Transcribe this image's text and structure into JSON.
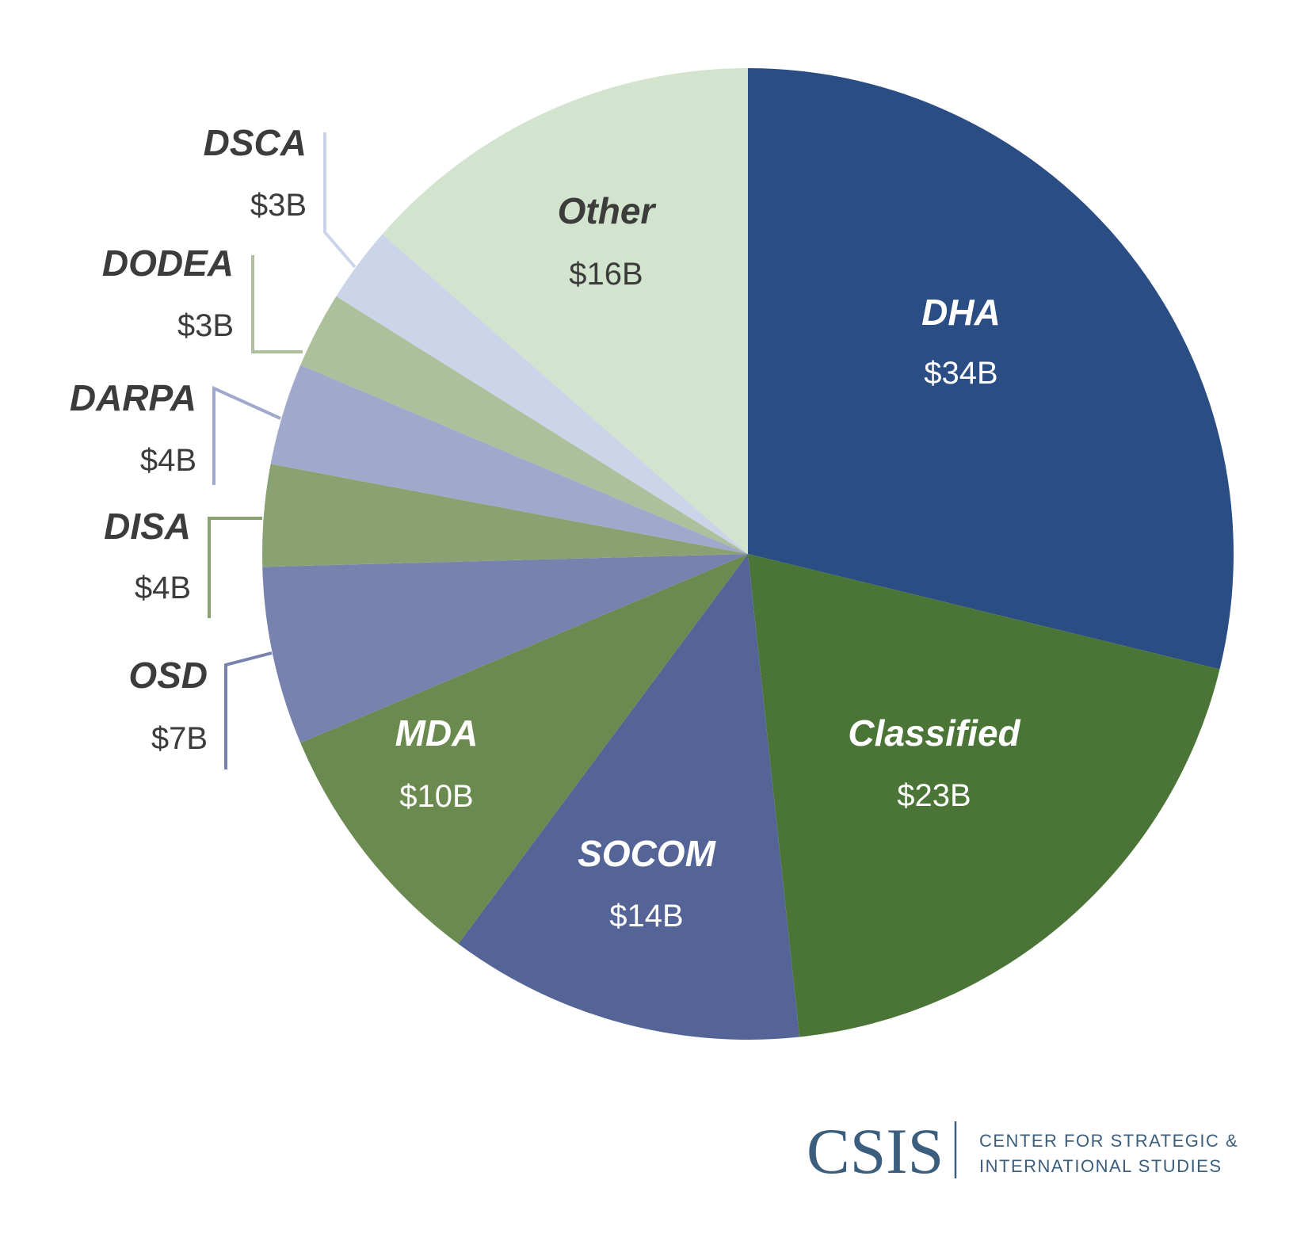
{
  "chart_data": {
    "type": "pie",
    "start": "12 o'clock, clockwise",
    "slices": [
      {
        "label": "DHA",
        "value": 34,
        "value_label": "$34B",
        "color": "#2a4d84",
        "placement": "inside"
      },
      {
        "label": "Classified",
        "value": 23,
        "value_label": "$23B",
        "color": "#4b7536",
        "placement": "inside"
      },
      {
        "label": "SOCOM",
        "value": 14,
        "value_label": "$14B",
        "color": "#546496",
        "placement": "inside"
      },
      {
        "label": "MDA",
        "value": 10,
        "value_label": "$10B",
        "color": "#6a8a50",
        "placement": "inside"
      },
      {
        "label": "OSD",
        "value": 7,
        "value_label": "$7B",
        "color": "#7882ae",
        "placement": "outside"
      },
      {
        "label": "DISA",
        "value": 4,
        "value_label": "$4B",
        "color": "#8aa272",
        "placement": "outside"
      },
      {
        "label": "DARPA",
        "value": 4,
        "value_label": "$4B",
        "color": "#a0a8cb",
        "placement": "outside"
      },
      {
        "label": "DODEA",
        "value": 3,
        "value_label": "$3B",
        "color": "#adc09c",
        "placement": "outside"
      },
      {
        "label": "DSCA",
        "value": 3,
        "value_label": "$3B",
        "color": "#cbd4e8",
        "placement": "outside"
      },
      {
        "label": "Other",
        "value": 16,
        "value_label": "$16B",
        "color": "#d2e4cd",
        "placement": "inside"
      }
    ],
    "unit": "$B"
  },
  "logo": {
    "main": "CSIS",
    "line1": "CENTER FOR STRATEGIC &",
    "line2": "INTERNATIONAL STUDIES"
  }
}
